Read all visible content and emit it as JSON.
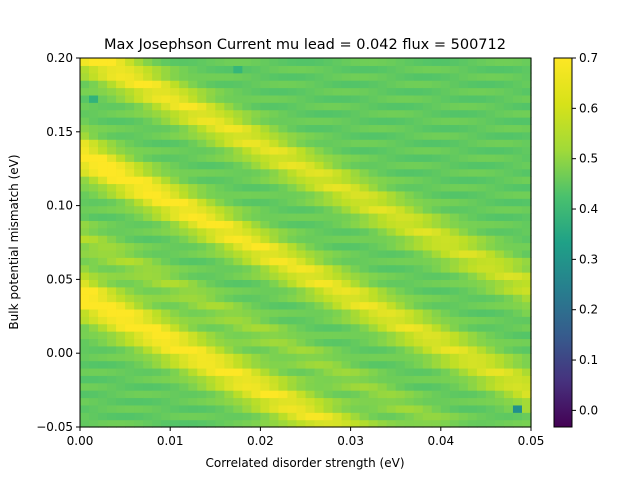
{
  "chart_data": {
    "type": "heatmap",
    "title": "Max Josephson Current mu lead = 0.042 flux = 500712",
    "xlabel": "Correlated disorder strength (eV)",
    "ylabel": "Bulk potential mismatch (eV)",
    "xlim": [
      0.0,
      0.05
    ],
    "ylim": [
      -0.05,
      0.2
    ],
    "xticks": [
      {
        "value": 0.0,
        "label": "0.00"
      },
      {
        "value": 0.01,
        "label": "0.01"
      },
      {
        "value": 0.02,
        "label": "0.02"
      },
      {
        "value": 0.03,
        "label": "0.03"
      },
      {
        "value": 0.04,
        "label": "0.04"
      },
      {
        "value": 0.05,
        "label": "0.05"
      }
    ],
    "yticks": [
      {
        "value": -0.05,
        "label": "−0.05"
      },
      {
        "value": 0.0,
        "label": "0.00"
      },
      {
        "value": 0.05,
        "label": "0.05"
      },
      {
        "value": 0.1,
        "label": "0.10"
      },
      {
        "value": 0.15,
        "label": "0.15"
      },
      {
        "value": 0.2,
        "label": "0.20"
      }
    ],
    "colormap": "viridis",
    "colorbar": {
      "vmin": -0.033,
      "vmax": 0.7,
      "ticks": [
        {
          "value": 0.0,
          "label": "0.0"
        },
        {
          "value": 0.1,
          "label": "0.1"
        },
        {
          "value": 0.2,
          "label": "0.2"
        },
        {
          "value": 0.3,
          "label": "0.3"
        },
        {
          "value": 0.4,
          "label": "0.4"
        },
        {
          "value": 0.5,
          "label": "0.5"
        },
        {
          "value": 0.6,
          "label": "0.6"
        },
        {
          "value": 0.7,
          "label": "0.7"
        }
      ]
    },
    "grid": {
      "nx": 50,
      "ny": 50
    },
    "field": {
      "background": 0.52,
      "bands": [
        {
          "y_intercept": 0.04,
          "slope": 3.2,
          "peak": 0.72,
          "width": 0.012
        },
        {
          "y_intercept": 0.135,
          "slope": 3.2,
          "peak": 0.72,
          "width": 0.011
        },
        {
          "y_intercept": 0.205,
          "slope": 3.2,
          "peak": 0.7,
          "width": 0.011
        },
        {
          "y_intercept": 0.08,
          "slope": 3.2,
          "peak": 0.6,
          "width": 0.008
        },
        {
          "y_intercept": -0.14,
          "slope": 2.6,
          "peak": 0.66,
          "width": 0.006
        },
        {
          "y_intercept": -0.105,
          "slope": 2.6,
          "peak": 0.58,
          "width": 0.005
        }
      ],
      "ridge_decay_per_eV": 18,
      "special_cells": [
        {
          "x": 0.0487,
          "y": -0.0375,
          "value": 0.33
        },
        {
          "x": 0.0015,
          "y": 0.1725,
          "value": 0.44
        },
        {
          "x": 0.0175,
          "y": 0.1925,
          "value": 0.45
        }
      ]
    }
  }
}
